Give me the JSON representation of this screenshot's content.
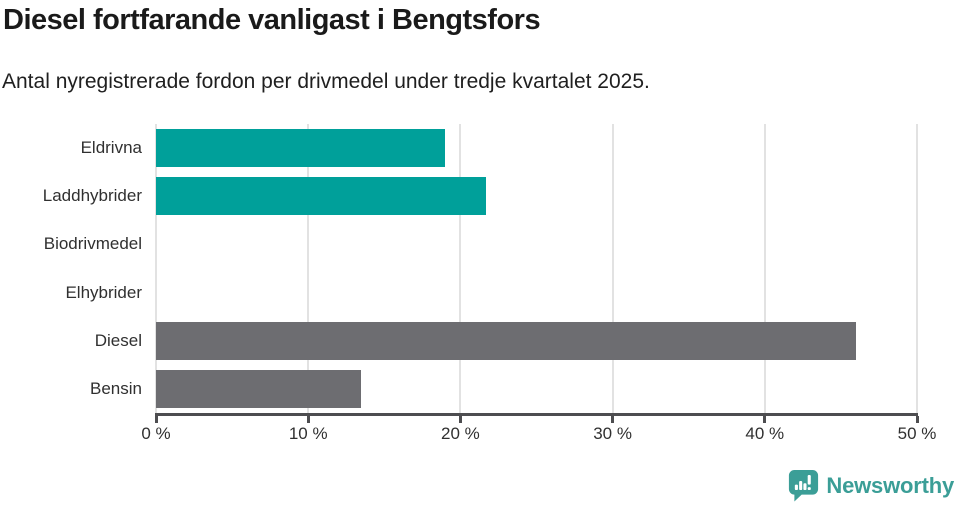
{
  "header": {
    "title": "Diesel fortfarande vanligast i Bengtsfors",
    "subtitle": "Antal nyregistrerade fordon per drivmedel under tredje kvartalet 2025."
  },
  "chart_data": {
    "type": "bar",
    "orientation": "horizontal",
    "title": "Diesel fortfarande vanligast i Bengtsfors",
    "subtitle": "Antal nyregistrerade fordon per drivmedel under tredje kvartalet 2025.",
    "categories": [
      "Eldrivna",
      "Laddhybrider",
      "Biodrivmedel",
      "Elhybrider",
      "Diesel",
      "Bensin"
    ],
    "values": [
      19,
      21.7,
      0,
      0,
      46,
      13.5
    ],
    "value_unit": "%",
    "bar_colors": [
      "#00a09a",
      "#00a09a",
      "#00a09a",
      "#00a09a",
      "#6d6d71",
      "#6d6d71"
    ],
    "xlim": [
      0,
      50
    ],
    "x_ticks": [
      {
        "value": 0,
        "label": "0 %"
      },
      {
        "value": 10,
        "label": "10 %"
      },
      {
        "value": 20,
        "label": "20 %"
      },
      {
        "value": 30,
        "label": "30 %"
      },
      {
        "value": 40,
        "label": "40 %"
      },
      {
        "value": 50,
        "label": "50 %"
      }
    ],
    "grid": "vertical",
    "legend": "none",
    "ylabel": "",
    "xlabel": ""
  },
  "colors": {
    "teal_bar": "#00a09a",
    "gray_bar": "#6d6d71",
    "axis": "#4d4d50",
    "gridline": "#e2e2e2",
    "title_text": "#1a1a1a",
    "label_text": "#303030",
    "logo_teal": "#3b9e97"
  },
  "branding": {
    "logo_text": "Newsworthy",
    "logo_icon": "bar-chart-speech-bubble-icon"
  }
}
